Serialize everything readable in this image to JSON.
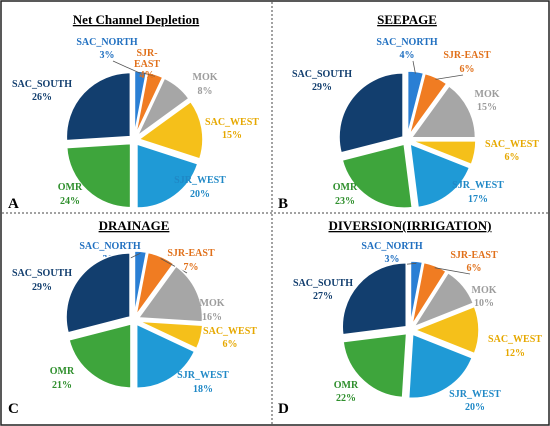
{
  "colors": {
    "SAC_NORTH": "#2a7fd4",
    "SJR-EAST": "#f07c22",
    "MOK": "#a6a6a6",
    "SAC_WEST": "#f5c01a",
    "SJR_WEST": "#1f9ad6",
    "OMR": "#3ea53c",
    "SAC_SOUTH": "#123e6e",
    "MOK_label": "#9c9c9c",
    "SAC_WEST_label": "#e6a800",
    "SJR_WEST_label": "#1f88c6",
    "OMR_label": "#2f8f2d",
    "SAC_NORTH_label": "#1f6fc0",
    "SJR-EAST_label": "#e0701a",
    "SAC_SOUTH_label": "#123e6e"
  },
  "chart_data": [
    {
      "type": "pie",
      "panel": "A",
      "title": "Net Channel Depletion",
      "slices": [
        {
          "name": "SAC_NORTH",
          "value": 3
        },
        {
          "name": "SJR-EAST",
          "value": 4
        },
        {
          "name": "MOK",
          "value": 8
        },
        {
          "name": "SAC_WEST",
          "value": 15
        },
        {
          "name": "SJR_WEST",
          "value": 20
        },
        {
          "name": "OMR",
          "value": 24
        },
        {
          "name": "SAC_SOUTH",
          "value": 26
        }
      ]
    },
    {
      "type": "pie",
      "panel": "B",
      "title": "SEEPAGE",
      "slices": [
        {
          "name": "SAC_NORTH",
          "value": 4
        },
        {
          "name": "SJR-EAST",
          "value": 6
        },
        {
          "name": "MOK",
          "value": 15
        },
        {
          "name": "SAC_WEST",
          "value": 6
        },
        {
          "name": "SJR_WEST",
          "value": 17
        },
        {
          "name": "OMR",
          "value": 23
        },
        {
          "name": "SAC_SOUTH",
          "value": 29
        }
      ]
    },
    {
      "type": "pie",
      "panel": "C",
      "title": "DRAINAGE",
      "slices": [
        {
          "name": "SAC_NORTH",
          "value": 3
        },
        {
          "name": "SJR-EAST",
          "value": 7
        },
        {
          "name": "MOK",
          "value": 16
        },
        {
          "name": "SAC_WEST",
          "value": 6
        },
        {
          "name": "SJR_WEST",
          "value": 18
        },
        {
          "name": "OMR",
          "value": 21
        },
        {
          "name": "SAC_SOUTH",
          "value": 29
        }
      ]
    },
    {
      "type": "pie",
      "panel": "D",
      "title": "DIVERSION(IRRIGATION)",
      "slices": [
        {
          "name": "SAC_NORTH",
          "value": 3
        },
        {
          "name": "SJR-EAST",
          "value": 6
        },
        {
          "name": "MOK",
          "value": 10
        },
        {
          "name": "SAC_WEST",
          "value": 12
        },
        {
          "name": "SJR_WEST",
          "value": 20
        },
        {
          "name": "OMR",
          "value": 22
        },
        {
          "name": "SAC_SOUTH",
          "value": 27
        }
      ]
    }
  ]
}
